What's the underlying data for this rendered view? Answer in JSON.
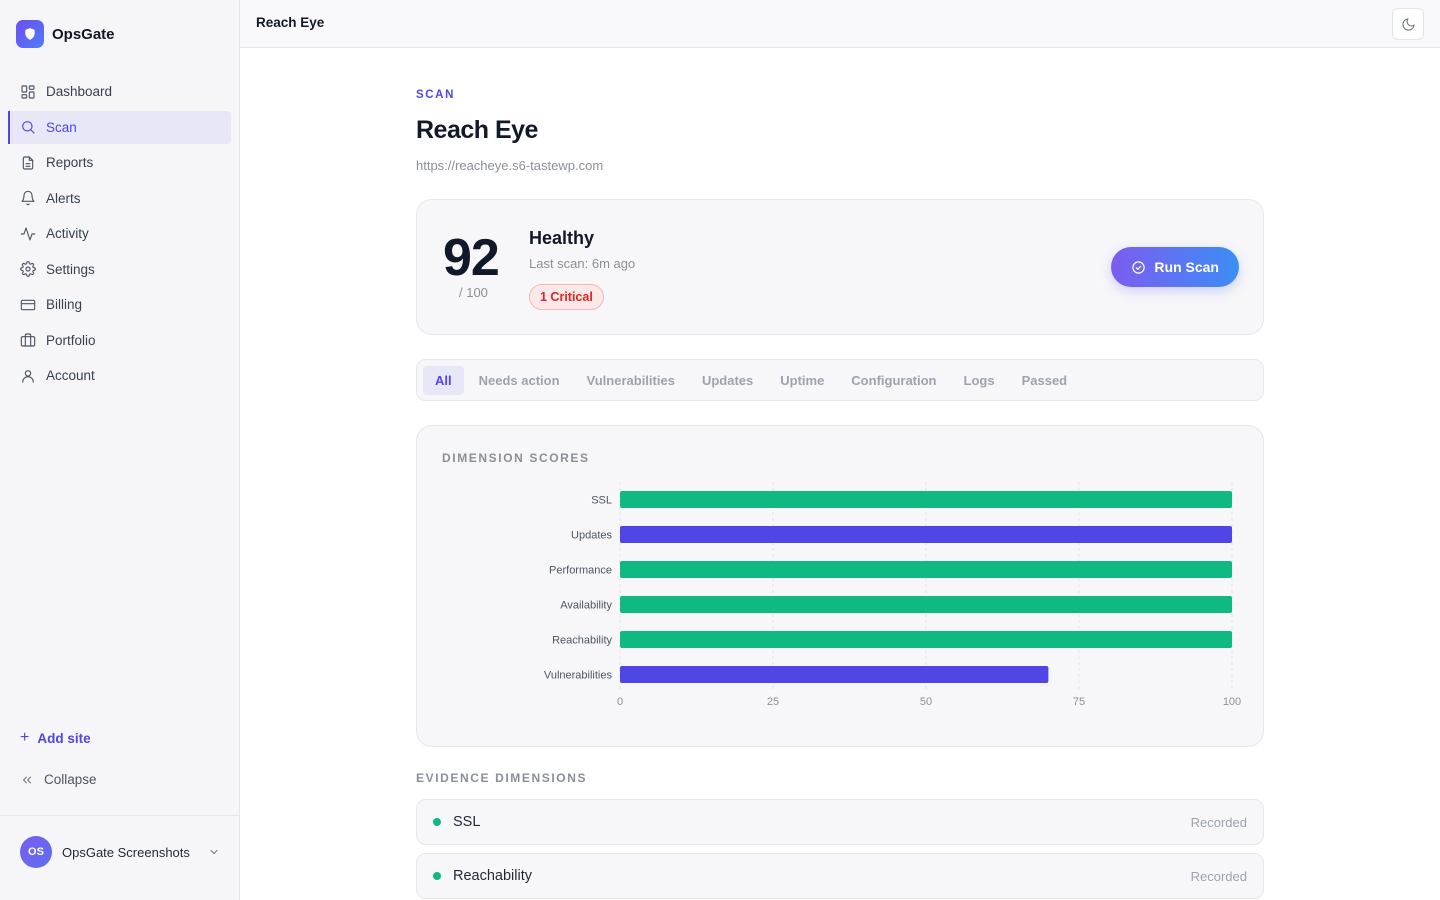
{
  "app": {
    "name": "OpsGate"
  },
  "sidebar": {
    "items": [
      {
        "label": "Dashboard",
        "icon": "dashboard-icon"
      },
      {
        "label": "Scan",
        "icon": "search-icon",
        "active": true
      },
      {
        "label": "Reports",
        "icon": "document-icon"
      },
      {
        "label": "Alerts",
        "icon": "bell-icon"
      },
      {
        "label": "Activity",
        "icon": "activity-icon"
      },
      {
        "label": "Settings",
        "icon": "gear-icon"
      },
      {
        "label": "Billing",
        "icon": "credit-card-icon"
      },
      {
        "label": "Portfolio",
        "icon": "briefcase-icon"
      },
      {
        "label": "Account",
        "icon": "user-icon"
      }
    ],
    "add_site": "Add site",
    "collapse": "Collapse",
    "org": {
      "initials": "OS",
      "name": "OpsGate Screenshots"
    }
  },
  "topbar": {
    "title": "Reach Eye"
  },
  "page": {
    "eyebrow": "SCAN",
    "title": "Reach Eye",
    "url": "https://reacheye.s6-tastewp.com"
  },
  "score": {
    "value": "92",
    "max": "/ 100",
    "status": "Healthy",
    "last_scan": "Last scan: 6m ago",
    "badge": "1 Critical",
    "run_button": "Run Scan"
  },
  "tabs": [
    "All",
    "Needs action",
    "Vulnerabilities",
    "Updates",
    "Uptime",
    "Configuration",
    "Logs",
    "Passed"
  ],
  "active_tab": 0,
  "chart_data": {
    "type": "bar",
    "orientation": "horizontal",
    "title": "DIMENSION SCORES",
    "categories": [
      "SSL",
      "Updates",
      "Performance",
      "Availability",
      "Reachability",
      "Vulnerabilities"
    ],
    "values": [
      100,
      100,
      100,
      100,
      100,
      70
    ],
    "colors": [
      "#10b981",
      "#4f46e5",
      "#10b981",
      "#10b981",
      "#10b981",
      "#4f46e5"
    ],
    "xlim": [
      0,
      100
    ],
    "xticks": [
      0,
      25,
      50,
      75,
      100
    ],
    "grid": true
  },
  "evidence": {
    "label": "EVIDENCE DIMENSIONS",
    "rows": [
      {
        "name": "SSL",
        "state": "Recorded"
      },
      {
        "name": "Reachability",
        "state": "Recorded"
      }
    ]
  },
  "colors": {
    "accent": "#4f46e5",
    "success": "#10b981",
    "danger": "#dc2626"
  }
}
